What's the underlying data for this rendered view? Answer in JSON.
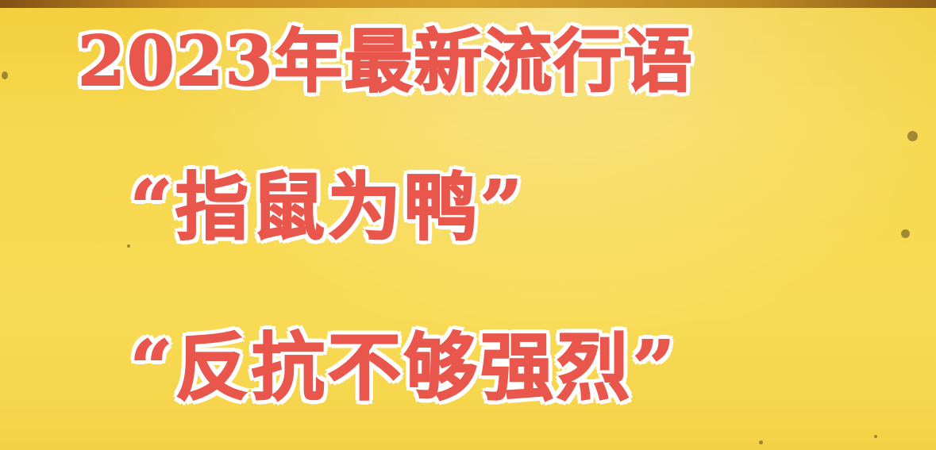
{
  "content": {
    "title": "2023年最新流行语",
    "phrase_1": "“指鼠为鸭”",
    "phrase_2": "“反抗不够强烈”"
  },
  "colors": {
    "background": "#f6d54a",
    "text_fill": "#e8564c",
    "text_outline": "#ffffff",
    "top_strip": "#c88a22"
  }
}
